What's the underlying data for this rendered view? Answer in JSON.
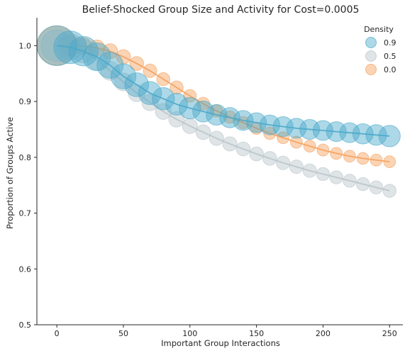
{
  "chart_data": {
    "type": "scatter",
    "title": "Belief-Shocked Group Size and Activity for Cost=0.0005",
    "xlabel": "Important Group Interactions",
    "ylabel": "Proportion of Groups Active",
    "xlim": [
      -15,
      260
    ],
    "ylim": [
      0.5,
      1.05
    ],
    "x_ticks": [
      "0",
      "50",
      "100",
      "150",
      "200",
      "250"
    ],
    "y_ticks": [
      "0.5",
      "0.6",
      "0.7",
      "0.8",
      "0.9",
      "1.0"
    ],
    "grid": false,
    "legend": {
      "title": "Density",
      "position": "top-right"
    },
    "marker_size_encodes": "group size",
    "series": [
      {
        "name": "0.9",
        "color": "#4aa9c9",
        "x": [
          0,
          10,
          20,
          30,
          40,
          50,
          60,
          70,
          80,
          90,
          100,
          110,
          120,
          130,
          140,
          150,
          160,
          170,
          180,
          190,
          200,
          210,
          220,
          230,
          240,
          250
        ],
        "y": [
          1.0,
          0.997,
          0.99,
          0.98,
          0.965,
          0.945,
          0.93,
          0.915,
          0.905,
          0.895,
          0.888,
          0.882,
          0.876,
          0.871,
          0.866,
          0.862,
          0.858,
          0.855,
          0.852,
          0.85,
          0.848,
          0.846,
          0.844,
          0.842,
          0.84,
          0.838
        ],
        "size": [
          1.0,
          0.82,
          0.74,
          0.7,
          0.66,
          0.63,
          0.6,
          0.58,
          0.56,
          0.55,
          0.54,
          0.53,
          0.52,
          0.51,
          0.5,
          0.5,
          0.5,
          0.5,
          0.5,
          0.5,
          0.5,
          0.5,
          0.5,
          0.51,
          0.52,
          0.54
        ]
      },
      {
        "name": "0.5",
        "color": "#b9c4c9",
        "x": [
          0,
          10,
          20,
          30,
          40,
          50,
          60,
          70,
          80,
          90,
          100,
          110,
          120,
          130,
          140,
          150,
          160,
          170,
          180,
          190,
          200,
          210,
          220,
          230,
          240,
          250
        ],
        "y": [
          1.0,
          0.998,
          0.99,
          0.975,
          0.955,
          0.935,
          0.915,
          0.898,
          0.882,
          0.868,
          0.856,
          0.845,
          0.834,
          0.824,
          0.815,
          0.806,
          0.798,
          0.79,
          0.783,
          0.776,
          0.77,
          0.764,
          0.758,
          0.752,
          0.746,
          0.74
        ],
        "size": [
          0.8,
          0.66,
          0.58,
          0.52,
          0.48,
          0.45,
          0.43,
          0.41,
          0.4,
          0.39,
          0.38,
          0.37,
          0.36,
          0.36,
          0.35,
          0.35,
          0.35,
          0.34,
          0.34,
          0.34,
          0.33,
          0.33,
          0.33,
          0.33,
          0.33,
          0.33
        ]
      },
      {
        "name": "0.0",
        "color": "#f5a05c",
        "x": [
          0,
          10,
          20,
          30,
          40,
          50,
          60,
          70,
          80,
          90,
          100,
          110,
          120,
          130,
          140,
          150,
          160,
          170,
          180,
          190,
          200,
          210,
          220,
          230,
          240,
          250
        ],
        "y": [
          1.0,
          1.0,
          0.999,
          0.996,
          0.99,
          0.98,
          0.968,
          0.955,
          0.94,
          0.925,
          0.91,
          0.896,
          0.883,
          0.872,
          0.862,
          0.852,
          0.843,
          0.835,
          0.827,
          0.82,
          0.813,
          0.807,
          0.802,
          0.798,
          0.795,
          0.792
        ],
        "size": [
          1.0,
          0.5,
          0.42,
          0.4,
          0.38,
          0.36,
          0.35,
          0.34,
          0.33,
          0.33,
          0.32,
          0.32,
          0.31,
          0.31,
          0.31,
          0.31,
          0.31,
          0.3,
          0.3,
          0.3,
          0.3,
          0.3,
          0.3,
          0.3,
          0.3,
          0.3
        ]
      }
    ]
  }
}
